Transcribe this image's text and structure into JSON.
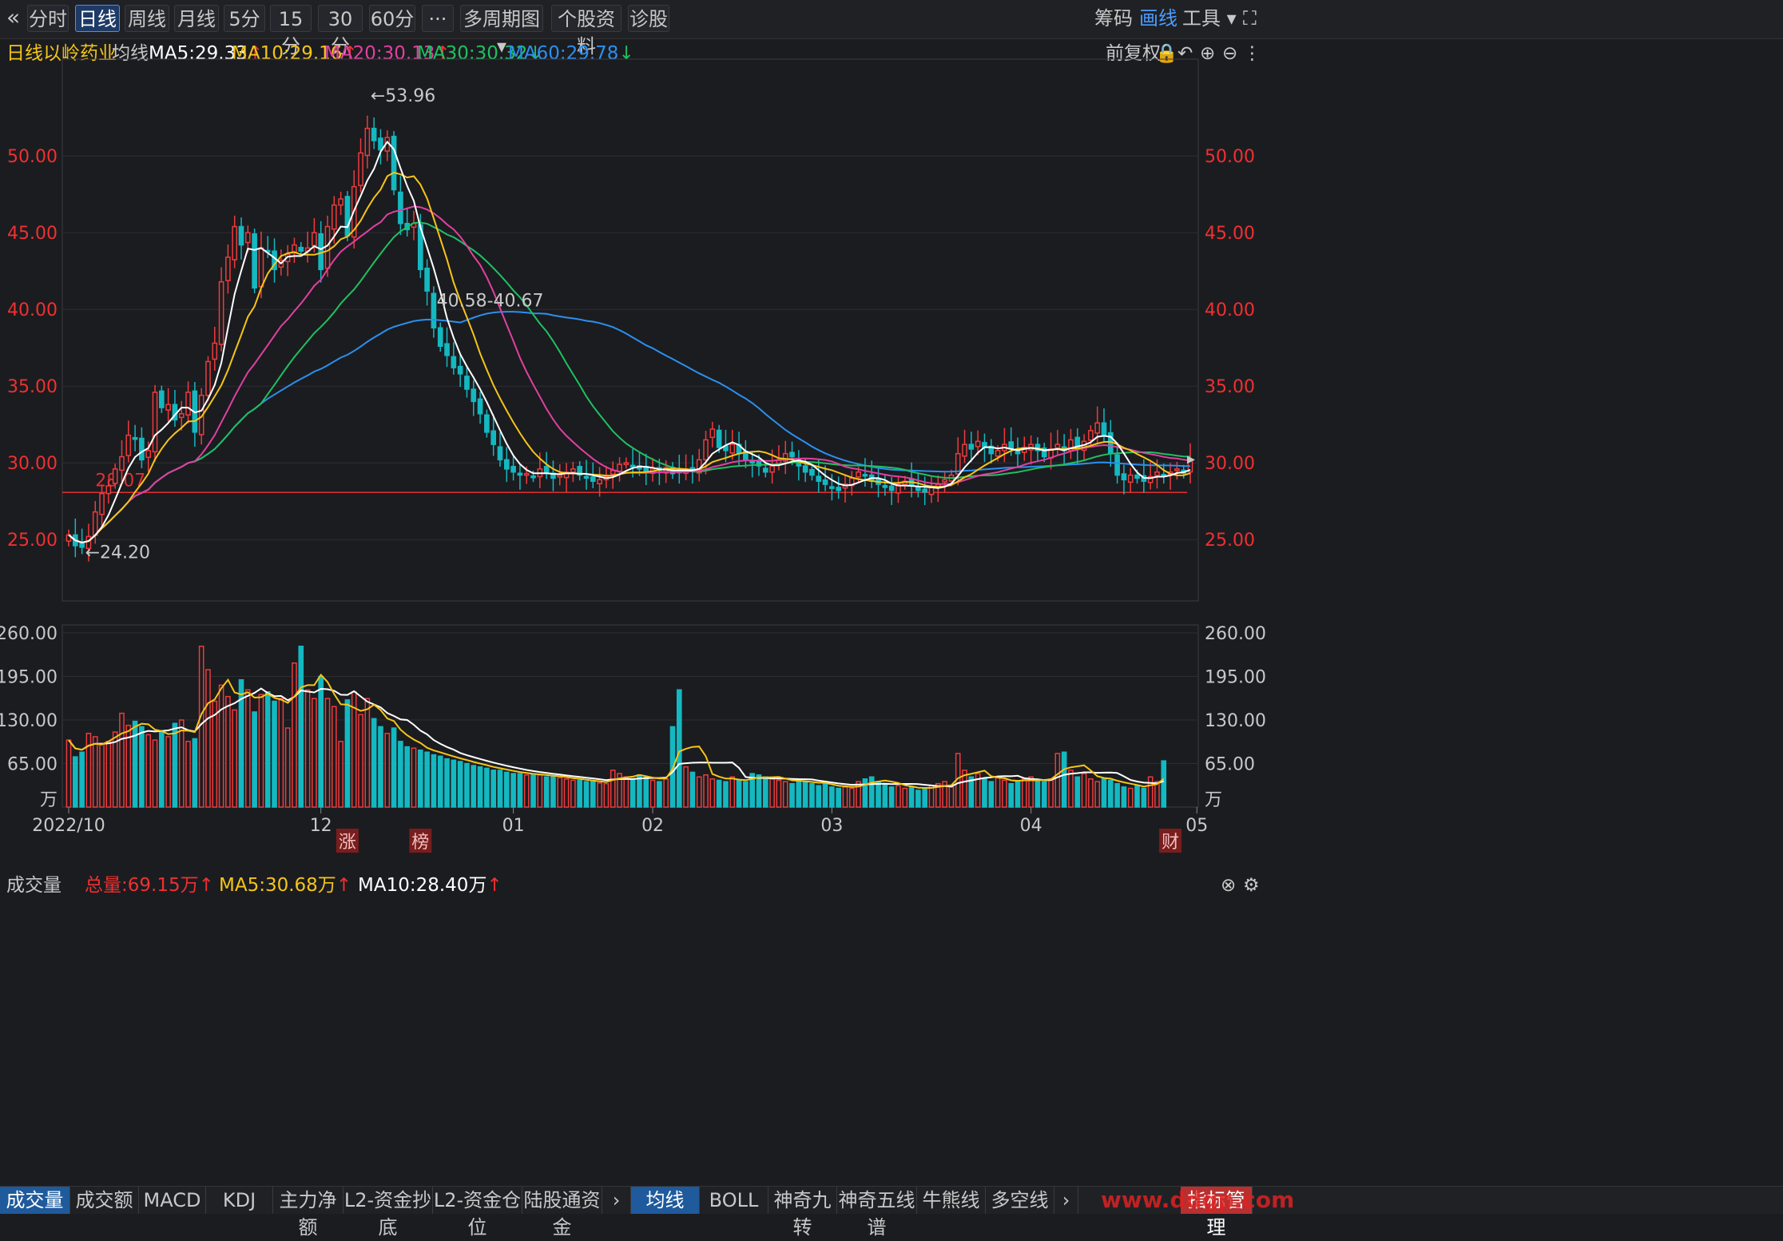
{
  "toolbar": {
    "back_icon": "«",
    "tabs": [
      {
        "label": "分时"
      },
      {
        "label": "日线"
      },
      {
        "label": "周线"
      },
      {
        "label": "月线"
      },
      {
        "label": "5分"
      },
      {
        "label": "15分"
      },
      {
        "label": "30分"
      },
      {
        "label": "60分"
      },
      {
        "label": "···"
      },
      {
        "label": "多周期图"
      },
      {
        "label": "个股资料"
      },
      {
        "label": "诊股"
      }
    ],
    "active_tab": "日线",
    "right": {
      "chips": "筹码",
      "draw": "画线",
      "tools": "工具"
    }
  },
  "info": {
    "period": "日线",
    "stock": "以岭药业",
    "avg": "均线",
    "ma5": "MA5:29.33",
    "ma10": "MA10:29.16",
    "ma20": "MA20:30.13",
    "ma30": "MA30:30.32",
    "ma60": "MA60:29.78",
    "adjust": "前复权",
    "colors": {
      "ma5": "#ffffff",
      "ma10": "#f5c518",
      "ma20": "#e040a0",
      "ma30": "#20c060",
      "ma60": "#2a90f0"
    }
  },
  "volume_info": {
    "title": "成交量",
    "total": "总量:69.15万",
    "ma5": "MA5:30.68万",
    "ma10": "MA10:28.40万"
  },
  "bottom_tabs_left": [
    "成交量",
    "成交额",
    "MACD",
    "KDJ",
    "主力净额",
    "L2-资金抄底",
    "L2-资金仓位",
    "陆股通资金"
  ],
  "bottom_tabs_right": [
    "均线",
    "BOLL",
    "神奇九转",
    "神奇五线谱",
    "牛熊线",
    "多空线"
  ],
  "bottom_right": "指标管理",
  "watermark": "www.ddgp.com",
  "chart_data": {
    "type": "candlestick",
    "price_axis": {
      "ticks": [
        "25.00",
        "30.00",
        "35.00",
        "40.00",
        "45.00",
        "50.00"
      ],
      "ylim": [
        21,
        56
      ]
    },
    "volume_axis": {
      "ticks": [
        "260.00",
        "195.00",
        "130.00",
        "65.00"
      ],
      "unit": "万",
      "ylim": [
        0,
        260
      ]
    },
    "x_ticks": [
      {
        "label": "2022/10",
        "i": 0
      },
      {
        "label": "12",
        "i": 38
      },
      {
        "label": "01",
        "i": 67
      },
      {
        "label": "02",
        "i": 88
      },
      {
        "label": "03",
        "i": 115
      },
      {
        "label": "04",
        "i": 145
      },
      {
        "label": "05",
        "i": 170
      }
    ],
    "annotations": {
      "high": "53.96",
      "low": "24.20",
      "level": "28.07",
      "range": "40.58-40.67",
      "markers": [
        {
          "text": "涨",
          "i": 42
        },
        {
          "text": "榜",
          "i": 53
        },
        {
          "text": "财",
          "i": 166
        }
      ]
    },
    "closes": [
      25.3,
      24.6,
      24.5,
      25.2,
      26.8,
      28.0,
      28.5,
      29.6,
      30.4,
      31.8,
      31.6,
      30.2,
      30.8,
      34.6,
      33.6,
      33.8,
      32.8,
      33.2,
      34.6,
      32.0,
      34.4,
      36.6,
      37.8,
      41.8,
      43.4,
      45.4,
      44.2,
      45.0,
      41.4,
      44.0,
      43.8,
      42.6,
      43.2,
      43.6,
      44.2,
      43.8,
      44.0,
      45.0,
      42.6,
      45.4,
      46.8,
      47.2,
      44.8,
      48.0,
      50.2,
      51.8,
      51.0,
      50.4,
      51.2,
      47.8,
      45.6,
      45.2,
      45.6,
      42.6,
      41.2,
      38.8,
      37.6,
      37.0,
      36.2,
      35.8,
      34.8,
      34.0,
      33.2,
      32.0,
      31.2,
      30.2,
      29.6,
      29.4,
      29.2,
      29.3,
      29.1,
      29.6,
      29.4,
      29.0,
      29.2,
      29.4,
      29.6,
      29.2,
      29.0,
      28.8,
      28.9,
      29.1,
      29.5,
      29.9,
      30.0,
      29.8,
      29.6,
      29.4,
      29.6,
      29.5,
      29.7,
      29.3,
      29.4,
      29.6,
      29.5,
      30.2,
      31.5,
      32.2,
      31.0,
      30.8,
      31.2,
      30.6,
      30.2,
      30.0,
      29.8,
      29.4,
      29.8,
      30.2,
      30.6,
      30.4,
      29.8,
      29.4,
      29.2,
      28.8,
      28.6,
      28.4,
      28.2,
      28.6,
      29.0,
      29.4,
      29.2,
      28.8,
      28.6,
      28.4,
      28.2,
      28.6,
      28.8,
      28.5,
      28.2,
      28.1,
      28.4,
      28.6,
      28.9,
      29.2,
      30.6,
      31.2,
      30.9,
      31.4,
      31.0,
      30.6,
      30.8,
      31.2,
      30.9,
      30.6,
      31.0,
      31.2,
      30.8,
      30.4,
      30.9,
      31.2,
      30.8,
      31.5,
      30.9,
      31.4,
      32.1,
      32.6,
      31.8,
      30.6,
      29.2,
      28.9,
      29.2,
      29.0,
      28.8,
      29.1,
      29.4,
      29.2,
      29.4,
      29.6,
      29.33,
      30.2
    ],
    "volumes": [
      100,
      75,
      82,
      110,
      105,
      95,
      98,
      112,
      140,
      122,
      128,
      120,
      108,
      100,
      112,
      105,
      125,
      130,
      98,
      102,
      240,
      205,
      158,
      182,
      165,
      145,
      190,
      175,
      142,
      168,
      172,
      158,
      162,
      118,
      215,
      240,
      175,
      162,
      195,
      162,
      150,
      98,
      160,
      172,
      138,
      162,
      132,
      120,
      110,
      118,
      98,
      90,
      88,
      85,
      82,
      78,
      76,
      72,
      70,
      68,
      65,
      62,
      60,
      58,
      55,
      55,
      52,
      50,
      50,
      48,
      48,
      48,
      45,
      45,
      44,
      42,
      40,
      40,
      38,
      38,
      36,
      35,
      55,
      50,
      45,
      42,
      48,
      45,
      40,
      38,
      42,
      120,
      175,
      60,
      52,
      45,
      48,
      42,
      40,
      38,
      45,
      40,
      38,
      50,
      48,
      45,
      42,
      40,
      38,
      35,
      42,
      38,
      35,
      32,
      35,
      30,
      28,
      30,
      28,
      38,
      42,
      45,
      38,
      35,
      30,
      32,
      28,
      30,
      25,
      28,
      32,
      35,
      38,
      30,
      80,
      55,
      45,
      50,
      42,
      38,
      45,
      40,
      35,
      38,
      42,
      45,
      40,
      38,
      42,
      80,
      82,
      55,
      45,
      50,
      42,
      38,
      42,
      40,
      35,
      30,
      28,
      32,
      28,
      45,
      38,
      69
    ]
  }
}
